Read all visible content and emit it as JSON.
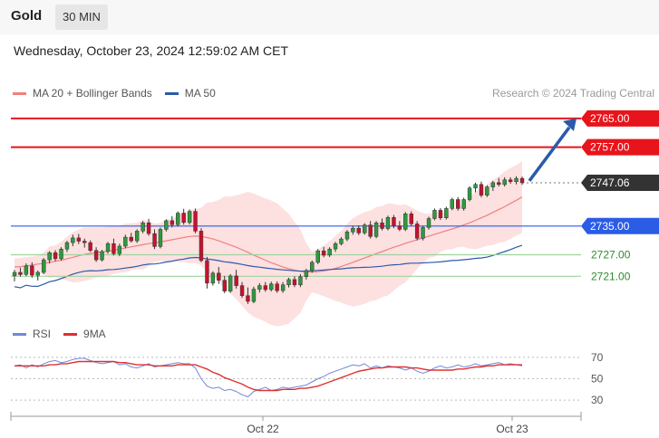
{
  "header": {
    "title": "Gold",
    "timeframe": "30 MIN",
    "datetime": "Wednesday, October 23, 2024 12:59:02 AM CET"
  },
  "legend_main": [
    {
      "label": "MA 20 + Bollinger Bands",
      "color": "#f08080"
    },
    {
      "label": "MA 50",
      "color": "#2b5aa8"
    }
  ],
  "credit": "Research © 2024 Trading Central",
  "legend_rsi": [
    {
      "label": "RSI",
      "color": "#6f8ad8"
    },
    {
      "label": "9MA",
      "color": "#e03030"
    }
  ],
  "chart_data": [
    {
      "type": "candlestick",
      "x_ticks": [
        "Oct 22",
        "Oct 23"
      ],
      "ylim": [
        2711.5,
        2769.5
      ],
      "levels": [
        {
          "label": "2765.00",
          "value": 2765.0,
          "color": "#e8141b",
          "kind": "resistance"
        },
        {
          "label": "2757.00",
          "value": 2757.0,
          "color": "#e8141b",
          "kind": "resistance"
        },
        {
          "label": "2747.06",
          "value": 2747.06,
          "color": "#333333",
          "kind": "last-price"
        },
        {
          "label": "2735.00",
          "value": 2735.0,
          "color": "#2b5ce6",
          "kind": "pivot"
        },
        {
          "label": "2727.00",
          "value": 2727.0,
          "color": "#2e8b2e",
          "kind": "support"
        },
        {
          "label": "2721.00",
          "value": 2721.0,
          "color": "#2e8b2e",
          "kind": "support"
        }
      ],
      "ohlc": [
        [
          2721.2,
          2722.8,
          2719.6,
          2722.1
        ],
        [
          2722.1,
          2723.4,
          2720.9,
          2721.5
        ],
        [
          2721.5,
          2724.6,
          2721.0,
          2723.9
        ],
        [
          2723.9,
          2724.9,
          2720.6,
          2721.3
        ],
        [
          2721.3,
          2722.6,
          2719.8,
          2722.1
        ],
        [
          2722.1,
          2726.1,
          2721.6,
          2725.6
        ],
        [
          2725.6,
          2728.0,
          2724.6,
          2727.6
        ],
        [
          2727.6,
          2728.3,
          2725.2,
          2725.9
        ],
        [
          2725.9,
          2729.1,
          2725.4,
          2728.6
        ],
        [
          2728.6,
          2730.9,
          2727.8,
          2730.4
        ],
        [
          2730.4,
          2732.6,
          2729.4,
          2731.7
        ],
        [
          2731.7,
          2732.8,
          2730.0,
          2730.8
        ],
        [
          2730.8,
          2731.5,
          2729.0,
          2730.4
        ],
        [
          2730.4,
          2731.0,
          2727.8,
          2728.2
        ],
        [
          2728.2,
          2729.1,
          2725.0,
          2725.6
        ],
        [
          2725.6,
          2728.4,
          2725.1,
          2727.9
        ],
        [
          2727.9,
          2730.6,
          2727.3,
          2730.1
        ],
        [
          2730.1,
          2731.5,
          2726.8,
          2727.3
        ],
        [
          2727.3,
          2730.1,
          2726.6,
          2729.4
        ],
        [
          2729.4,
          2732.6,
          2728.8,
          2731.9
        ],
        [
          2731.9,
          2733.1,
          2730.4,
          2730.9
        ],
        [
          2730.9,
          2734.1,
          2730.3,
          2733.6
        ],
        [
          2733.6,
          2736.4,
          2733.0,
          2735.9
        ],
        [
          2735.9,
          2737.0,
          2732.3,
          2732.9
        ],
        [
          2732.9,
          2734.1,
          2728.6,
          2729.3
        ],
        [
          2729.3,
          2734.6,
          2728.8,
          2734.1
        ],
        [
          2734.1,
          2736.9,
          2733.5,
          2736.5
        ],
        [
          2736.5,
          2737.8,
          2734.6,
          2735.4
        ],
        [
          2735.4,
          2739.1,
          2734.9,
          2738.6
        ],
        [
          2738.6,
          2739.8,
          2735.4,
          2736.0
        ],
        [
          2736.0,
          2739.6,
          2735.4,
          2739.1
        ],
        [
          2739.1,
          2739.9,
          2733.0,
          2733.6
        ],
        [
          2733.6,
          2734.4,
          2724.9,
          2725.4
        ],
        [
          2725.4,
          2726.4,
          2717.6,
          2719.1
        ],
        [
          2719.1,
          2722.4,
          2718.4,
          2721.9
        ],
        [
          2721.9,
          2723.6,
          2718.9,
          2719.9
        ],
        [
          2719.9,
          2721.1,
          2716.3,
          2716.9
        ],
        [
          2716.9,
          2721.6,
          2716.4,
          2721.1
        ],
        [
          2721.1,
          2722.8,
          2717.6,
          2718.4
        ],
        [
          2718.4,
          2719.4,
          2715.0,
          2715.6
        ],
        [
          2715.6,
          2717.9,
          2713.3,
          2714.0
        ],
        [
          2714.0,
          2718.1,
          2713.5,
          2717.4
        ],
        [
          2717.4,
          2719.1,
          2716.5,
          2718.4
        ],
        [
          2718.4,
          2719.4,
          2716.7,
          2717.3
        ],
        [
          2717.3,
          2719.5,
          2716.8,
          2718.9
        ],
        [
          2718.9,
          2719.6,
          2716.4,
          2717.0
        ],
        [
          2717.0,
          2719.4,
          2716.4,
          2718.6
        ],
        [
          2718.6,
          2720.6,
          2717.9,
          2720.1
        ],
        [
          2720.1,
          2721.0,
          2718.0,
          2718.6
        ],
        [
          2718.6,
          2721.6,
          2718.0,
          2720.9
        ],
        [
          2720.9,
          2723.1,
          2720.1,
          2722.6
        ],
        [
          2722.6,
          2725.4,
          2722.0,
          2724.9
        ],
        [
          2724.9,
          2728.6,
          2724.4,
          2728.1
        ],
        [
          2728.1,
          2729.2,
          2726.3,
          2726.9
        ],
        [
          2726.9,
          2729.1,
          2726.4,
          2728.6
        ],
        [
          2728.6,
          2730.6,
          2727.8,
          2730.1
        ],
        [
          2730.1,
          2731.9,
          2729.6,
          2731.4
        ],
        [
          2731.4,
          2733.9,
          2730.8,
          2733.4
        ],
        [
          2733.4,
          2735.1,
          2732.6,
          2734.4
        ],
        [
          2734.4,
          2735.2,
          2732.5,
          2733.1
        ],
        [
          2733.1,
          2735.8,
          2732.6,
          2735.3
        ],
        [
          2735.3,
          2736.4,
          2731.5,
          2732.1
        ],
        [
          2732.1,
          2736.4,
          2731.6,
          2735.9
        ],
        [
          2735.9,
          2737.1,
          2733.8,
          2734.3
        ],
        [
          2734.3,
          2737.9,
          2733.8,
          2737.4
        ],
        [
          2737.4,
          2738.1,
          2734.4,
          2735.0
        ],
        [
          2735.0,
          2736.4,
          2733.6,
          2734.1
        ],
        [
          2734.1,
          2738.9,
          2733.6,
          2738.4
        ],
        [
          2738.4,
          2739.1,
          2735.0,
          2735.6
        ],
        [
          2735.6,
          2736.4,
          2731.0,
          2731.6
        ],
        [
          2731.6,
          2735.1,
          2731.0,
          2734.6
        ],
        [
          2734.6,
          2737.6,
          2734.0,
          2737.1
        ],
        [
          2737.1,
          2739.9,
          2736.6,
          2739.4
        ],
        [
          2739.4,
          2740.0,
          2736.7,
          2737.3
        ],
        [
          2737.3,
          2740.4,
          2736.8,
          2739.9
        ],
        [
          2739.9,
          2742.9,
          2739.4,
          2742.4
        ],
        [
          2742.4,
          2743.1,
          2739.3,
          2739.9
        ],
        [
          2739.9,
          2742.9,
          2739.3,
          2742.4
        ],
        [
          2742.4,
          2746.1,
          2741.9,
          2745.6
        ],
        [
          2745.6,
          2747.1,
          2744.4,
          2746.6
        ],
        [
          2746.6,
          2747.4,
          2743.0,
          2743.6
        ],
        [
          2743.6,
          2746.4,
          2743.1,
          2745.9
        ],
        [
          2745.9,
          2747.6,
          2744.8,
          2747.1
        ],
        [
          2747.1,
          2748.4,
          2746.0,
          2746.6
        ],
        [
          2746.6,
          2748.6,
          2746.0,
          2747.9
        ],
        [
          2747.9,
          2748.6,
          2746.8,
          2747.4
        ],
        [
          2747.4,
          2748.9,
          2746.6,
          2748.3
        ],
        [
          2748.3,
          2748.8,
          2746.5,
          2747.1
        ]
      ],
      "ma20": [
        2723.6,
        2723.7,
        2723.9,
        2724.1,
        2724.4,
        2724.6,
        2724.9,
        2725.2,
        2725.5,
        2725.9,
        2726.3,
        2726.7,
        2727.1,
        2727.4,
        2727.6,
        2727.8,
        2728.0,
        2728.3,
        2728.6,
        2728.9,
        2729.2,
        2729.5,
        2729.8,
        2730.1,
        2730.3,
        2730.6,
        2730.9,
        2731.2,
        2731.5,
        2731.8,
        2732.1,
        2732.2,
        2732.1,
        2731.8,
        2731.4,
        2730.9,
        2730.3,
        2729.7,
        2729.1,
        2728.4,
        2727.7,
        2726.9,
        2726.2,
        2725.5,
        2724.8,
        2724.2,
        2723.6,
        2723.1,
        2722.7,
        2722.4,
        2722.2,
        2722.2,
        2722.3,
        2722.5,
        2722.8,
        2723.2,
        2723.7,
        2724.3,
        2724.9,
        2725.5,
        2726.1,
        2726.7,
        2727.3,
        2727.9,
        2728.5,
        2729.1,
        2729.6,
        2730.2,
        2730.7,
        2731.2,
        2731.7,
        2732.2,
        2732.7,
        2733.2,
        2733.7,
        2734.2,
        2734.7,
        2735.3,
        2735.9,
        2736.6,
        2737.3,
        2738.0,
        2738.8,
        2739.6,
        2740.4,
        2741.3,
        2742.2,
        2743.1
      ]
    },
    {
      "type": "line",
      "title": "RSI",
      "y_ticks": [
        70,
        50,
        30
      ],
      "ylim": [
        25,
        80
      ],
      "series": [
        {
          "name": "RSI",
          "color": "#6f8ad8",
          "values": [
            62,
            63,
            60,
            63,
            61,
            64,
            66,
            67,
            65,
            66,
            68,
            69,
            69,
            67,
            65,
            64,
            65,
            66,
            63,
            64,
            61,
            60,
            62,
            64,
            61,
            62,
            63,
            64,
            65,
            64,
            64,
            60,
            50,
            43,
            41,
            42,
            39,
            40,
            38,
            35,
            33,
            38,
            40,
            42,
            39,
            40,
            42,
            41,
            42,
            43,
            44,
            47,
            50,
            52,
            55,
            57,
            59,
            61,
            63,
            62,
            64,
            60,
            62,
            60,
            62,
            61,
            60,
            58,
            60,
            57,
            55,
            57,
            60,
            62,
            60,
            61,
            63,
            61,
            62,
            64,
            62,
            63,
            64,
            65,
            63,
            64,
            63,
            62
          ]
        },
        {
          "name": "9MA",
          "color": "#e03030",
          "values": [
            62,
            62,
            62,
            62,
            62,
            62,
            63,
            63,
            64,
            64,
            65,
            66,
            66,
            66,
            66,
            66,
            66,
            66,
            65,
            65,
            64,
            63,
            63,
            63,
            62,
            62,
            62,
            62,
            63,
            63,
            63,
            63,
            61,
            59,
            56,
            54,
            51,
            49,
            47,
            45,
            42,
            40,
            39,
            39,
            39,
            39,
            40,
            40,
            40,
            41,
            41,
            42,
            43,
            45,
            47,
            49,
            51,
            53,
            55,
            57,
            58,
            59,
            60,
            60,
            61,
            61,
            61,
            61,
            60,
            60,
            59,
            58,
            58,
            58,
            58,
            58,
            59,
            59,
            60,
            61,
            61,
            62,
            62,
            63,
            63,
            63,
            63,
            63
          ]
        }
      ]
    }
  ]
}
